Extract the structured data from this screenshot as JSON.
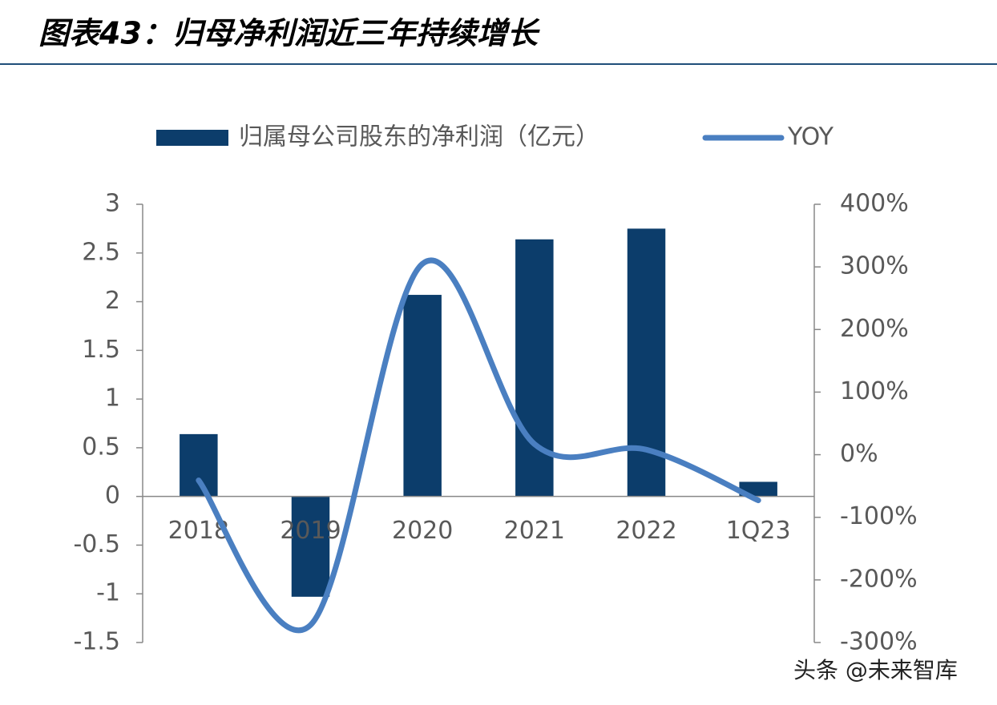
{
  "chart_data": {
    "type": "bar_line",
    "title": "图表43：归母净利润近三年持续增长",
    "watermark": "头条 @未来智库",
    "categories": [
      "2018",
      "2019",
      "2020",
      "2021",
      "2022",
      "1Q23"
    ],
    "series": [
      {
        "name": "归属母公司股东的净利润（亿元）",
        "color": "#0c3d6b",
        "type": "bar",
        "values": [
          0.64,
          -1.03,
          2.07,
          2.64,
          2.75,
          0.15
        ]
      },
      {
        "name": "YOY",
        "color": "#4a7fc1",
        "type": "line",
        "axis": "y2",
        "values": [
          -41,
          -272,
          305,
          17,
          8,
          -73
        ]
      }
    ],
    "ylim": [
      -1.5,
      3
    ],
    "yticks": [
      -1.5,
      -1,
      -0.5,
      0,
      0.5,
      1,
      1.5,
      2,
      2.5,
      3
    ],
    "y2lim": [
      -300,
      400
    ],
    "y2ticks": [
      {
        "value": -300,
        "label": "-300%"
      },
      {
        "value": -200,
        "label": "-200%"
      },
      {
        "value": -100,
        "label": "-100%"
      },
      {
        "value": 0,
        "label": "0%"
      },
      {
        "value": 100,
        "label": "100%"
      },
      {
        "value": 200,
        "label": "200%"
      },
      {
        "value": 300,
        "label": "300%"
      },
      {
        "value": 400,
        "label": "400%"
      }
    ],
    "grid": false,
    "legend": "top"
  }
}
